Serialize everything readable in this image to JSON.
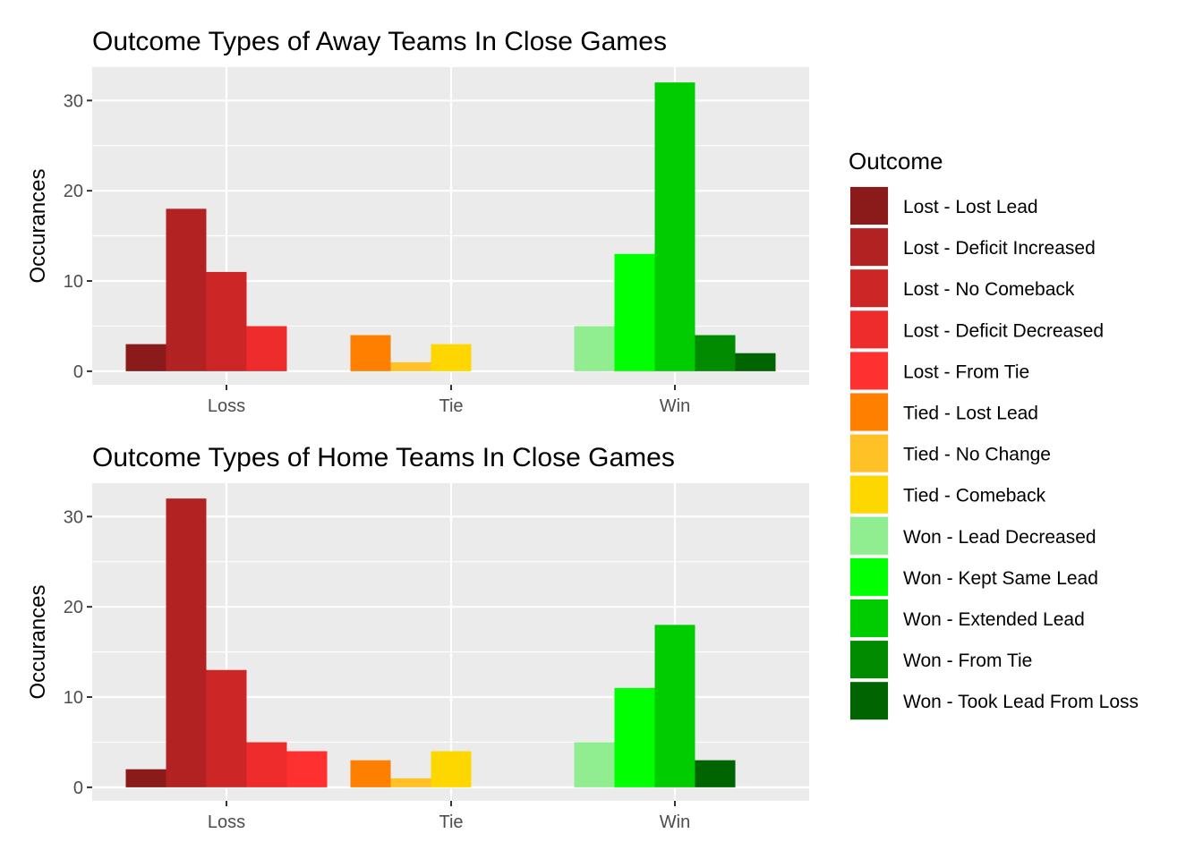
{
  "chart_data": [
    {
      "type": "bar",
      "title": "Outcome Types of Away Teams In Close Games",
      "xlabel": "",
      "ylabel": "Occurances",
      "categories": [
        "Loss",
        "Tie",
        "Win"
      ],
      "ylim": [
        -1.5,
        33.7
      ],
      "yticks": [
        0,
        10,
        20,
        30
      ],
      "grid": true,
      "bars": [
        {
          "category": "Loss",
          "outcome": "Lost - Lost Lead",
          "value": 3
        },
        {
          "category": "Loss",
          "outcome": "Lost - Deficit Increased",
          "value": 18
        },
        {
          "category": "Loss",
          "outcome": "Lost - No Comeback",
          "value": 11
        },
        {
          "category": "Loss",
          "outcome": "Lost - Deficit Decreased",
          "value": 5
        },
        {
          "category": "Tie",
          "outcome": "Tied - Lost Lead",
          "value": 4
        },
        {
          "category": "Tie",
          "outcome": "Tied - No Change",
          "value": 1
        },
        {
          "category": "Tie",
          "outcome": "Tied - Comeback",
          "value": 3
        },
        {
          "category": "Win",
          "outcome": "Won - Lead Decreased",
          "value": 5
        },
        {
          "category": "Win",
          "outcome": "Won - Kept Same Lead",
          "value": 13
        },
        {
          "category": "Win",
          "outcome": "Won - Extended Lead",
          "value": 32
        },
        {
          "category": "Win",
          "outcome": "Won - From Tie",
          "value": 4
        },
        {
          "category": "Win",
          "outcome": "Won - Took Lead From Loss",
          "value": 2
        }
      ]
    },
    {
      "type": "bar",
      "title": "Outcome Types of Home Teams In Close Games",
      "xlabel": "",
      "ylabel": "Occurances",
      "categories": [
        "Loss",
        "Tie",
        "Win"
      ],
      "ylim": [
        -1.5,
        33.7
      ],
      "yticks": [
        0,
        10,
        20,
        30
      ],
      "grid": true,
      "bars": [
        {
          "category": "Loss",
          "outcome": "Lost - Lost Lead",
          "value": 2
        },
        {
          "category": "Loss",
          "outcome": "Lost - Deficit Increased",
          "value": 32
        },
        {
          "category": "Loss",
          "outcome": "Lost - No Comeback",
          "value": 13
        },
        {
          "category": "Loss",
          "outcome": "Lost - Deficit Decreased",
          "value": 5
        },
        {
          "category": "Loss",
          "outcome": "Lost - From Tie",
          "value": 4
        },
        {
          "category": "Tie",
          "outcome": "Tied - Lost Lead",
          "value": 3
        },
        {
          "category": "Tie",
          "outcome": "Tied - No Change",
          "value": 1
        },
        {
          "category": "Tie",
          "outcome": "Tied - Comeback",
          "value": 4
        },
        {
          "category": "Win",
          "outcome": "Won - Lead Decreased",
          "value": 5
        },
        {
          "category": "Win",
          "outcome": "Won - Kept Same Lead",
          "value": 11
        },
        {
          "category": "Win",
          "outcome": "Won - Extended Lead",
          "value": 18
        },
        {
          "category": "Win",
          "outcome": "Won - Took Lead From Loss",
          "value": 3
        }
      ]
    }
  ],
  "legend": {
    "title": "Outcome",
    "placement": "right",
    "items": [
      {
        "label": "Lost - Lost Lead",
        "color": "#8b1a1a"
      },
      {
        "label": "Lost - Deficit Increased",
        "color": "#b22222"
      },
      {
        "label": "Lost - No Comeback",
        "color": "#cd2626"
      },
      {
        "label": "Lost - Deficit Decreased",
        "color": "#ee2c2c"
      },
      {
        "label": "Lost - From Tie",
        "color": "#ff3030"
      },
      {
        "label": "Tied - Lost Lead",
        "color": "#ff7f00"
      },
      {
        "label": "Tied - No Change",
        "color": "#ffc125"
      },
      {
        "label": "Tied - Comeback",
        "color": "#ffd700"
      },
      {
        "label": "Won - Lead Decreased",
        "color": "#90ee90"
      },
      {
        "label": "Won - Kept Same Lead",
        "color": "#00ff00"
      },
      {
        "label": "Won - Extended Lead",
        "color": "#00cd00"
      },
      {
        "label": "Won - From Tie",
        "color": "#008b00"
      },
      {
        "label": "Won - Took Lead From Loss",
        "color": "#006400"
      }
    ]
  }
}
